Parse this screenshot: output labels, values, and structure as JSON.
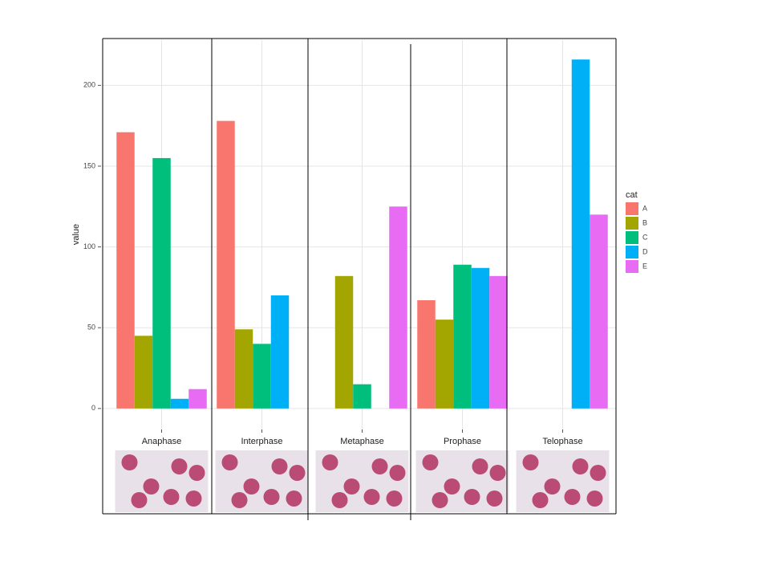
{
  "chart_data": {
    "type": "bar",
    "y_label": "value",
    "categories": [
      "Anaphase",
      "Interphase",
      "Metaphase",
      "Prophase",
      "Telophase"
    ],
    "series": [
      {
        "name": "A",
        "color": "#f8766d",
        "values": [
          171,
          178,
          null,
          67,
          null
        ]
      },
      {
        "name": "B",
        "color": "#a3a500",
        "values": [
          45,
          49,
          82,
          55,
          null
        ]
      },
      {
        "name": "C",
        "color": "#00bf7d",
        "values": [
          155,
          40,
          15,
          89,
          null
        ]
      },
      {
        "name": "D",
        "color": "#00b0f6",
        "values": [
          6,
          70,
          null,
          87,
          216
        ]
      },
      {
        "name": "E",
        "color": "#e76bf3",
        "values": [
          12,
          null,
          125,
          82,
          120
        ]
      }
    ],
    "legend_title": "cat",
    "ylim": [
      -13,
      228
    ],
    "yticks": [
      0,
      50,
      100,
      150,
      200
    ],
    "grid": true,
    "legend_position": "right"
  }
}
